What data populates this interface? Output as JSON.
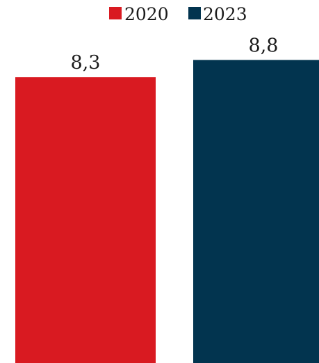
{
  "chart_data": {
    "type": "bar",
    "categories": [
      "2020",
      "2023"
    ],
    "values": [
      8.3,
      8.8
    ],
    "value_labels": [
      "8,3",
      "8,8"
    ],
    "colors": [
      "#d91a21",
      "#02344f"
    ],
    "legend": {
      "placement": "top-center",
      "entries": [
        "2020",
        "2023"
      ]
    },
    "title": "",
    "xlabel": "",
    "ylabel": "",
    "ylim": [
      0,
      10.5
    ],
    "grid": false
  }
}
